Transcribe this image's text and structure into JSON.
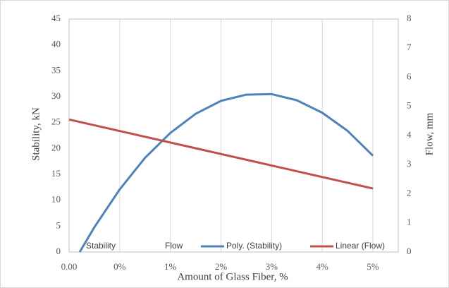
{
  "chart_data": {
    "type": "line",
    "x_label": "Amount of Glass Fiber, %",
    "y_label": "Stability, kN",
    "y2_label": "Flow, mm",
    "xlim": [
      -1,
      5.5
    ],
    "xticks": [
      {
        "value": -1,
        "label": "0.00"
      },
      {
        "value": 0,
        "label": "0%"
      },
      {
        "value": 1,
        "label": "1%"
      },
      {
        "value": 2,
        "label": "2%"
      },
      {
        "value": 3,
        "label": "3%"
      },
      {
        "value": 4,
        "label": "4%"
      },
      {
        "value": 5,
        "label": "5%"
      }
    ],
    "ylim": [
      0,
      45
    ],
    "yticks": [
      0,
      5,
      10,
      15,
      20,
      25,
      30,
      35,
      40,
      45
    ],
    "y2lim": [
      0,
      8
    ],
    "y2ticks": [
      0,
      1,
      2,
      3,
      4,
      5,
      6,
      7,
      8
    ],
    "grid": "x",
    "legend": "bottom",
    "series": [
      {
        "name": "Stability",
        "color": "#4472c4",
        "x": [],
        "values": []
      },
      {
        "name": "Flow",
        "color": "#c0504d",
        "x": [],
        "values": [],
        "axis": "y2"
      },
      {
        "name": "Poly. (Stability)",
        "color": "#4f81bd",
        "x": [
          -0.79,
          -0.5,
          0,
          0.5,
          1,
          1.5,
          2,
          2.5,
          3,
          3.5,
          4,
          4.5,
          5
        ],
        "values": [
          0,
          4.8,
          12.1,
          18.2,
          23.0,
          26.7,
          29.2,
          30.4,
          30.5,
          29.3,
          26.9,
          23.4,
          18.6
        ]
      },
      {
        "name": "Linear (Flow)",
        "color": "#c0504d",
        "x": [
          -1,
          5
        ],
        "values": [
          4.55,
          2.18
        ],
        "axis": "y2"
      }
    ]
  }
}
